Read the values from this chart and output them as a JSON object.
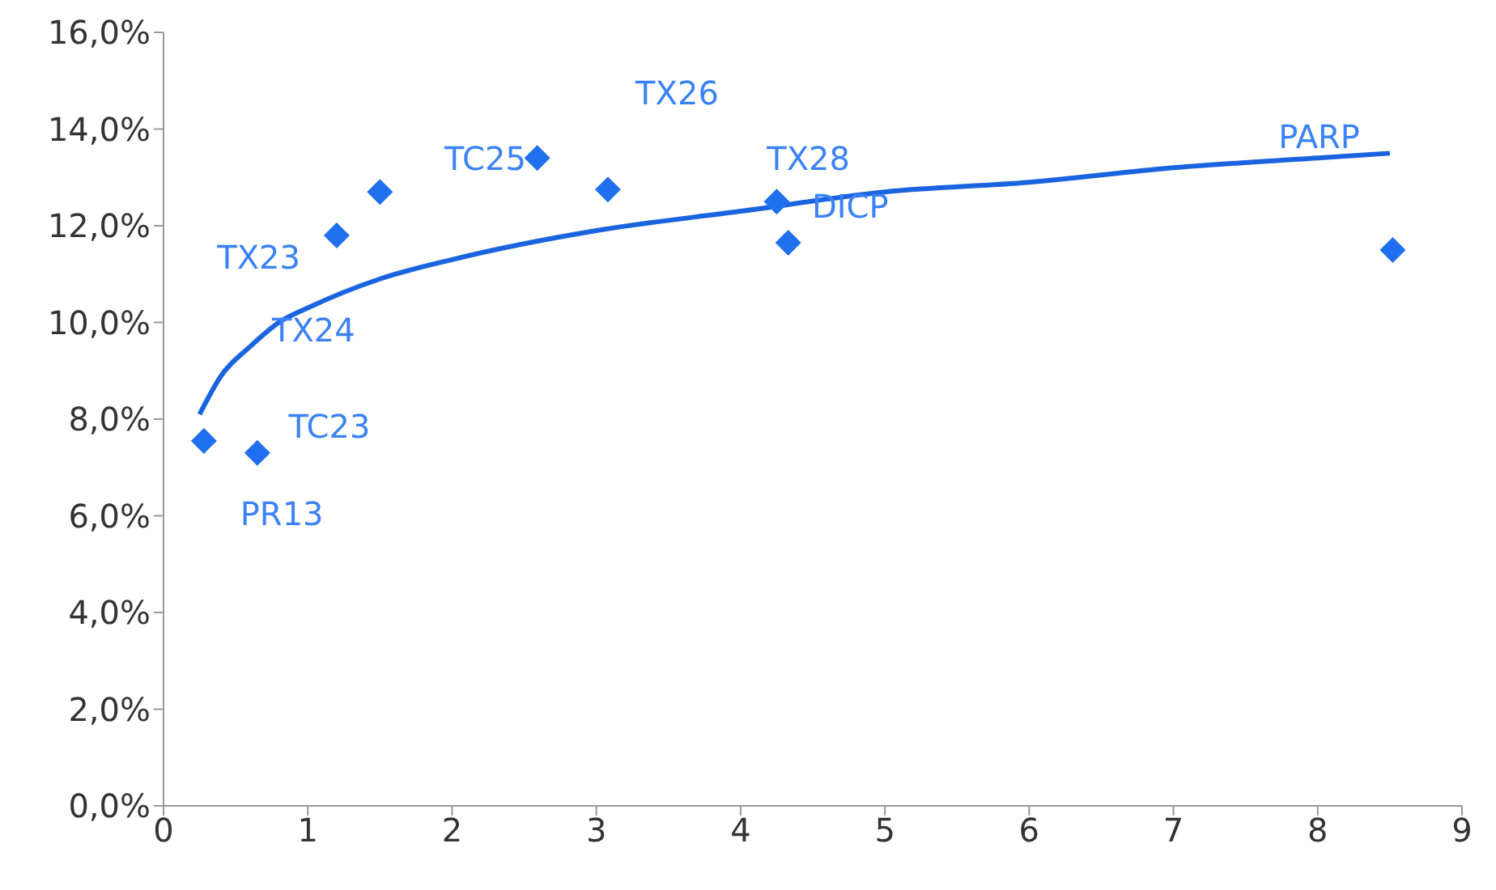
{
  "chart_data": {
    "type": "scatter",
    "xlim": [
      0,
      9
    ],
    "xticks": [
      0,
      1,
      2,
      3,
      4,
      5,
      6,
      7,
      8,
      9
    ],
    "ylim": [
      0,
      16
    ],
    "yticks": [
      {
        "value": 0,
        "label": "0,0%"
      },
      {
        "value": 2,
        "label": "2,0%"
      },
      {
        "value": 4,
        "label": "4,0%"
      },
      {
        "value": 6,
        "label": "6,0%"
      },
      {
        "value": 8,
        "label": "8,0%"
      },
      {
        "value": 10,
        "label": "10,0%"
      },
      {
        "value": 12,
        "label": "12,0%"
      },
      {
        "value": 14,
        "label": "14,0%"
      },
      {
        "value": 16,
        "label": "16,0%"
      }
    ],
    "grid": false,
    "legend": false,
    "series": [
      {
        "type": "scatter",
        "color": "#1f6fef",
        "marker": "diamond",
        "x": [
          0.28,
          0.65,
          1.2,
          1.5,
          2.59,
          3.08,
          4.25,
          4.33,
          8.52
        ],
        "values": [
          7.55,
          7.3,
          11.8,
          12.7,
          13.4,
          12.75,
          12.5,
          11.65,
          11.5
        ]
      },
      {
        "type": "line",
        "color": "#1a64e0",
        "marker": "none",
        "line_style": "solid",
        "x": [
          0.25,
          0.4,
          0.6,
          0.8,
          1,
          1.5,
          2,
          3,
          4,
          5,
          6,
          7,
          8,
          8.5
        ],
        "values": [
          8.1,
          8.9,
          9.5,
          10.0,
          10.3,
          10.9,
          11.3,
          11.9,
          12.3,
          12.7,
          12.9,
          13.2,
          13.4,
          13.5
        ]
      }
    ],
    "annotations": [
      "TX23",
      "TX24",
      "TC23",
      "PR13",
      "TC25",
      "TX26",
      "TX28",
      "DICP",
      "PARP"
    ]
  }
}
